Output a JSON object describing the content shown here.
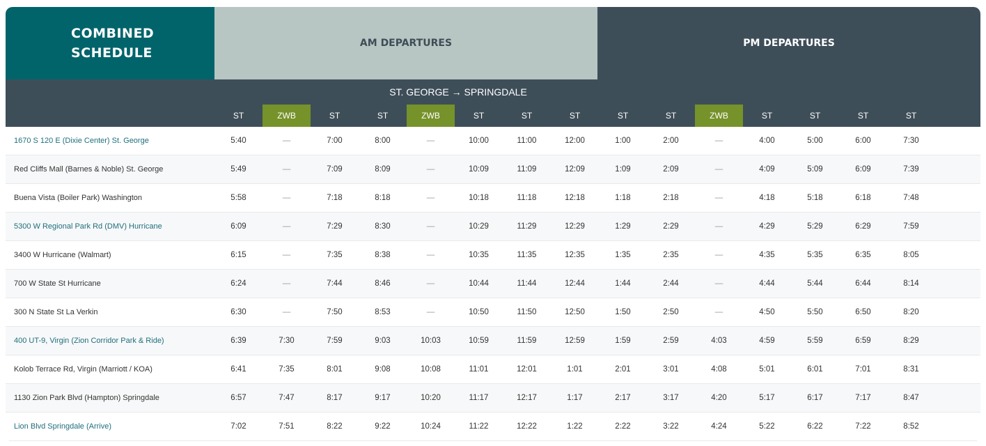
{
  "header": {
    "combined_line1": "COMBINED",
    "combined_line2": "SCHEDULE",
    "am": "AM DEPARTURES",
    "pm": "PM DEPARTURES",
    "route": "ST. GEORGE → SPRINGDALE"
  },
  "colors": {
    "combined_bg": "#02646b",
    "am_bg": "#b8c6c3",
    "pm_bg": "#3e4e59",
    "zwb_bg": "#76922a",
    "link": "#1f6f7d"
  },
  "columns": [
    "ST",
    "ZWB",
    "ST",
    "ST",
    "ZWB",
    "ST",
    "ST",
    "ST",
    "ST",
    "ST",
    "ZWB",
    "ST",
    "ST",
    "ST",
    "ST"
  ],
  "rows": [
    {
      "stop": "1670 S 120 E (Dixie Center) St. George",
      "link": true,
      "times": [
        "5:40",
        "—",
        "7:00",
        "8:00",
        "—",
        "10:00",
        "11:00",
        "12:00",
        "1:00",
        "2:00",
        "—",
        "4:00",
        "5:00",
        "6:00",
        "7:30"
      ]
    },
    {
      "stop": "Red Cliffs Mall (Barnes & Noble) St. George",
      "link": false,
      "times": [
        "5:49",
        "—",
        "7:09",
        "8:09",
        "—",
        "10:09",
        "11:09",
        "12:09",
        "1:09",
        "2:09",
        "—",
        "4:09",
        "5:09",
        "6:09",
        "7:39"
      ]
    },
    {
      "stop": "Buena Vista (Boiler Park) Washington",
      "link": false,
      "times": [
        "5:58",
        "—",
        "7:18",
        "8:18",
        "—",
        "10:18",
        "11:18",
        "12:18",
        "1:18",
        "2:18",
        "—",
        "4:18",
        "5:18",
        "6:18",
        "7:48"
      ]
    },
    {
      "stop": "5300 W Regional Park Rd (DMV) Hurricane",
      "link": true,
      "times": [
        "6:09",
        "—",
        "7:29",
        "8:30",
        "—",
        "10:29",
        "11:29",
        "12:29",
        "1:29",
        "2:29",
        "—",
        "4:29",
        "5:29",
        "6:29",
        "7:59"
      ]
    },
    {
      "stop": "3400 W Hurricane (Walmart)",
      "link": false,
      "times": [
        "6:15",
        "—",
        "7:35",
        "8:38",
        "—",
        "10:35",
        "11:35",
        "12:35",
        "1:35",
        "2:35",
        "—",
        "4:35",
        "5:35",
        "6:35",
        "8:05"
      ]
    },
    {
      "stop": "700 W State St Hurricane",
      "link": false,
      "times": [
        "6:24",
        "—",
        "7:44",
        "8:46",
        "—",
        "10:44",
        "11:44",
        "12:44",
        "1:44",
        "2:44",
        "—",
        "4:44",
        "5:44",
        "6:44",
        "8:14"
      ]
    },
    {
      "stop": "300 N State St La Verkin",
      "link": false,
      "times": [
        "6:30",
        "—",
        "7:50",
        "8:53",
        "—",
        "10:50",
        "11:50",
        "12:50",
        "1:50",
        "2:50",
        "—",
        "4:50",
        "5:50",
        "6:50",
        "8:20"
      ]
    },
    {
      "stop": "400 UT-9, Virgin (Zion Corridor Park & Ride)",
      "link": true,
      "times": [
        "6:39",
        "7:30",
        "7:59",
        "9:03",
        "10:03",
        "10:59",
        "11:59",
        "12:59",
        "1:59",
        "2:59",
        "4:03",
        "4:59",
        "5:59",
        "6:59",
        "8:29"
      ]
    },
    {
      "stop": "Kolob Terrace Rd, Virgin (Marriott / KOA)",
      "link": false,
      "times": [
        "6:41",
        "7:35",
        "8:01",
        "9:08",
        "10:08",
        "11:01",
        "12:01",
        "1:01",
        "2:01",
        "3:01",
        "4:08",
        "5:01",
        "6:01",
        "7:01",
        "8:31"
      ]
    },
    {
      "stop": "1130 Zion Park Blvd (Hampton) Springdale",
      "link": false,
      "times": [
        "6:57",
        "7:47",
        "8:17",
        "9:17",
        "10:20",
        "11:17",
        "12:17",
        "1:17",
        "2:17",
        "3:17",
        "4:20",
        "5:17",
        "6:17",
        "7:17",
        "8:47"
      ]
    },
    {
      "stop": "Lion Blvd Springdale (Arrive)",
      "link": true,
      "times": [
        "7:02",
        "7:51",
        "8:22",
        "9:22",
        "10:24",
        "11:22",
        "12:22",
        "1:22",
        "2:22",
        "3:22",
        "4:24",
        "5:22",
        "6:22",
        "7:22",
        "8:52"
      ]
    }
  ]
}
